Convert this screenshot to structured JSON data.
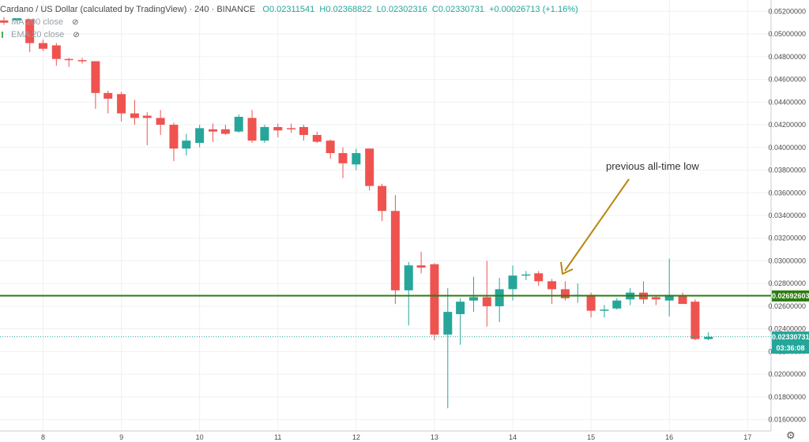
{
  "header": {
    "symbol": "Cardano / US Dollar (calculated by TradingView) · 240 · BINANCE",
    "open": "O0.02311541",
    "high": "H0.02368822",
    "low": "L0.02302316",
    "close": "C0.02330731",
    "change": "+0.00026713 (+1.16%)"
  },
  "indicators": [
    {
      "label": "MA 200 close",
      "icon": "eye-off-icon"
    },
    {
      "label": "EMA 20 close",
      "icon": "eye-off-icon"
    }
  ],
  "annotation": {
    "text": "previous all-time low",
    "color": "#b8860b"
  },
  "support_line": {
    "price": 0.02692603,
    "label": "0.02692603",
    "color": "#2e7d12"
  },
  "last_price": {
    "price": 0.02330731,
    "label": "0.02330731",
    "countdown": "03:36:08",
    "color": "#26a69a"
  },
  "colors": {
    "up": "#26a69a",
    "down": "#ef5350",
    "grid": "#eef0f3",
    "text": "#4a4a4a"
  },
  "chart_data": {
    "type": "candlestick",
    "interval": "240",
    "ylim": [
      0.015,
      0.053
    ],
    "xlim": [
      7.45,
      17.3
    ],
    "y_ticks": [
      "0.05200000",
      "0.05000000",
      "0.04800000",
      "0.04600000",
      "0.04400000",
      "0.04200000",
      "0.04000000",
      "0.03800000",
      "0.03600000",
      "0.03400000",
      "0.03200000",
      "0.03000000",
      "0.02800000",
      "0.02600000",
      "0.02400000",
      "0.02200000",
      "0.02000000",
      "0.01800000",
      "0.01600000"
    ],
    "y_tick_values": [
      0.052,
      0.05,
      0.048,
      0.046,
      0.044,
      0.042,
      0.04,
      0.038,
      0.036,
      0.034,
      0.032,
      0.03,
      0.028,
      0.026,
      0.024,
      0.022,
      0.02,
      0.018,
      0.016
    ],
    "x_ticks": [
      "8",
      "9",
      "10",
      "11",
      "12",
      "13",
      "14",
      "15",
      "16",
      "17"
    ],
    "x_tick_values": [
      8,
      9,
      10,
      11,
      12,
      13,
      14,
      15,
      16,
      17
    ],
    "candles": [
      {
        "t": 7.5,
        "o": 0.0512,
        "h": 0.0515,
        "l": 0.0508,
        "c": 0.051
      },
      {
        "t": 7.67,
        "o": 0.0512,
        "h": 0.0514,
        "l": 0.0509,
        "c": 0.0514
      },
      {
        "t": 7.83,
        "o": 0.0513,
        "h": 0.0513,
        "l": 0.0484,
        "c": 0.0492
      },
      {
        "t": 8.0,
        "o": 0.0492,
        "h": 0.0495,
        "l": 0.0485,
        "c": 0.0487
      },
      {
        "t": 8.17,
        "o": 0.049,
        "h": 0.0492,
        "l": 0.0472,
        "c": 0.0478
      },
      {
        "t": 8.33,
        "o": 0.0478,
        "h": 0.0479,
        "l": 0.0471,
        "c": 0.0477
      },
      {
        "t": 8.5,
        "o": 0.0477,
        "h": 0.0479,
        "l": 0.0474,
        "c": 0.0476
      },
      {
        "t": 8.67,
        "o": 0.0476,
        "h": 0.0476,
        "l": 0.0434,
        "c": 0.0448
      },
      {
        "t": 8.83,
        "o": 0.0448,
        "h": 0.045,
        "l": 0.043,
        "c": 0.0443
      },
      {
        "t": 9.0,
        "o": 0.0447,
        "h": 0.0449,
        "l": 0.0423,
        "c": 0.043
      },
      {
        "t": 9.17,
        "o": 0.043,
        "h": 0.0442,
        "l": 0.042,
        "c": 0.0426
      },
      {
        "t": 9.33,
        "o": 0.0428,
        "h": 0.0431,
        "l": 0.0402,
        "c": 0.0426
      },
      {
        "t": 9.5,
        "o": 0.0426,
        "h": 0.0433,
        "l": 0.0411,
        "c": 0.042
      },
      {
        "t": 9.67,
        "o": 0.042,
        "h": 0.0422,
        "l": 0.0388,
        "c": 0.0399
      },
      {
        "t": 9.83,
        "o": 0.0399,
        "h": 0.0412,
        "l": 0.0393,
        "c": 0.0406
      },
      {
        "t": 10.0,
        "o": 0.0404,
        "h": 0.042,
        "l": 0.04,
        "c": 0.0417
      },
      {
        "t": 10.17,
        "o": 0.0416,
        "h": 0.0421,
        "l": 0.0405,
        "c": 0.0414
      },
      {
        "t": 10.33,
        "o": 0.0416,
        "h": 0.042,
        "l": 0.0411,
        "c": 0.0412
      },
      {
        "t": 10.5,
        "o": 0.0414,
        "h": 0.0429,
        "l": 0.0413,
        "c": 0.0427
      },
      {
        "t": 10.67,
        "o": 0.0426,
        "h": 0.0433,
        "l": 0.0404,
        "c": 0.0406
      },
      {
        "t": 10.83,
        "o": 0.0406,
        "h": 0.042,
        "l": 0.0404,
        "c": 0.0418
      },
      {
        "t": 11.0,
        "o": 0.0418,
        "h": 0.0421,
        "l": 0.0409,
        "c": 0.0415
      },
      {
        "t": 11.17,
        "o": 0.0417,
        "h": 0.0421,
        "l": 0.0413,
        "c": 0.0416
      },
      {
        "t": 11.33,
        "o": 0.0418,
        "h": 0.042,
        "l": 0.0406,
        "c": 0.0411
      },
      {
        "t": 11.5,
        "o": 0.0411,
        "h": 0.0414,
        "l": 0.0404,
        "c": 0.0405
      },
      {
        "t": 11.67,
        "o": 0.0406,
        "h": 0.0407,
        "l": 0.039,
        "c": 0.0395
      },
      {
        "t": 11.83,
        "o": 0.0395,
        "h": 0.04,
        "l": 0.0373,
        "c": 0.0386
      },
      {
        "t": 12.0,
        "o": 0.0385,
        "h": 0.0399,
        "l": 0.038,
        "c": 0.0395
      },
      {
        "t": 12.17,
        "o": 0.0399,
        "h": 0.0399,
        "l": 0.0362,
        "c": 0.0366
      },
      {
        "t": 12.33,
        "o": 0.0366,
        "h": 0.0368,
        "l": 0.0335,
        "c": 0.0344
      },
      {
        "t": 12.5,
        "o": 0.0344,
        "h": 0.0358,
        "l": 0.0262,
        "c": 0.0274
      },
      {
        "t": 12.67,
        "o": 0.0274,
        "h": 0.0299,
        "l": 0.0243,
        "c": 0.0296
      },
      {
        "t": 12.83,
        "o": 0.0296,
        "h": 0.0308,
        "l": 0.0289,
        "c": 0.0294
      },
      {
        "t": 13.0,
        "o": 0.0297,
        "h": 0.0298,
        "l": 0.023,
        "c": 0.0235
      },
      {
        "t": 13.17,
        "o": 0.0235,
        "h": 0.0276,
        "l": 0.017,
        "c": 0.0255
      },
      {
        "t": 13.33,
        "o": 0.0253,
        "h": 0.0267,
        "l": 0.0226,
        "c": 0.0264
      },
      {
        "t": 13.5,
        "o": 0.0265,
        "h": 0.0286,
        "l": 0.0255,
        "c": 0.0268
      },
      {
        "t": 13.67,
        "o": 0.0268,
        "h": 0.03,
        "l": 0.0242,
        "c": 0.026
      },
      {
        "t": 13.83,
        "o": 0.026,
        "h": 0.0285,
        "l": 0.0246,
        "c": 0.0275
      },
      {
        "t": 14.0,
        "o": 0.0275,
        "h": 0.0296,
        "l": 0.0265,
        "c": 0.0287
      },
      {
        "t": 14.17,
        "o": 0.0287,
        "h": 0.0291,
        "l": 0.0283,
        "c": 0.0288
      },
      {
        "t": 14.33,
        "o": 0.0289,
        "h": 0.0291,
        "l": 0.0278,
        "c": 0.0282
      },
      {
        "t": 14.5,
        "o": 0.0282,
        "h": 0.0284,
        "l": 0.0262,
        "c": 0.0275
      },
      {
        "t": 14.67,
        "o": 0.0275,
        "h": 0.0282,
        "l": 0.0265,
        "c": 0.0267
      },
      {
        "t": 14.83,
        "o": 0.0269,
        "h": 0.028,
        "l": 0.0263,
        "c": 0.027
      },
      {
        "t": 15.0,
        "o": 0.027,
        "h": 0.0272,
        "l": 0.025,
        "c": 0.0256
      },
      {
        "t": 15.17,
        "o": 0.0256,
        "h": 0.0261,
        "l": 0.025,
        "c": 0.0257
      },
      {
        "t": 15.33,
        "o": 0.0258,
        "h": 0.0267,
        "l": 0.0257,
        "c": 0.0265
      },
      {
        "t": 15.5,
        "o": 0.0266,
        "h": 0.0276,
        "l": 0.0261,
        "c": 0.0272
      },
      {
        "t": 15.67,
        "o": 0.0272,
        "h": 0.0282,
        "l": 0.0262,
        "c": 0.0266
      },
      {
        "t": 15.83,
        "o": 0.0268,
        "h": 0.027,
        "l": 0.0261,
        "c": 0.0266
      },
      {
        "t": 16.0,
        "o": 0.0265,
        "h": 0.0302,
        "l": 0.0251,
        "c": 0.027
      },
      {
        "t": 16.17,
        "o": 0.0269,
        "h": 0.0272,
        "l": 0.0262,
        "c": 0.0262
      },
      {
        "t": 16.33,
        "o": 0.0264,
        "h": 0.0266,
        "l": 0.023,
        "c": 0.0231
      },
      {
        "t": 16.5,
        "o": 0.0231,
        "h": 0.0237,
        "l": 0.023,
        "c": 0.0233
      }
    ]
  }
}
